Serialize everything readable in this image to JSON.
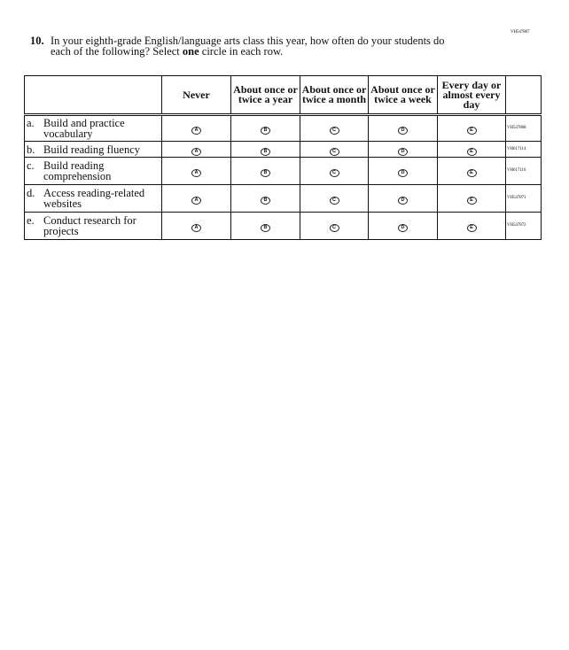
{
  "question_id": "VH547867",
  "question": {
    "number": "10.",
    "text_before": "In your eighth-grade English/language arts class this year, how often do your students do each of the following? Select ",
    "text_bold": "one",
    "text_after": " circle in each row."
  },
  "columns": [
    "Never",
    "About once or twice a year",
    "About once or twice a month",
    "About once or twice a week",
    "Every day or almost every day"
  ],
  "bubble_letters": [
    "A",
    "B",
    "C",
    "D",
    "E"
  ],
  "rows": [
    {
      "letter": "a.",
      "label": "Build and practice vocabulary",
      "id": "VH547868"
    },
    {
      "letter": "b.",
      "label": "Build reading fluency",
      "id": "VH617114"
    },
    {
      "letter": "c.",
      "label": "Build reading comprehension",
      "id": "VH617116"
    },
    {
      "letter": "d.",
      "label": "Access reading-related websites",
      "id": "VH547871"
    },
    {
      "letter": "e.",
      "label": "Conduct research for projects",
      "id": "VH547872"
    }
  ]
}
